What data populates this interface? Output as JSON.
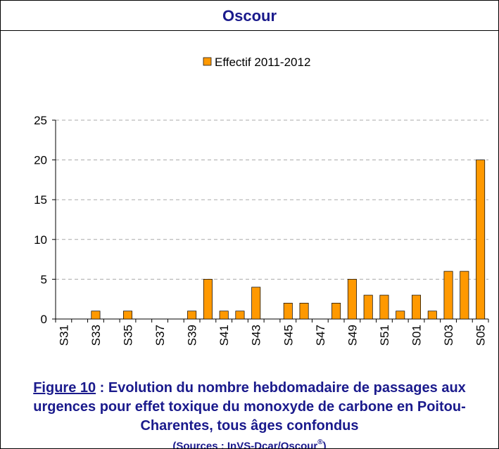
{
  "header": {
    "title": "Oscour"
  },
  "chart_data": {
    "type": "bar",
    "categories": [
      "S31",
      null,
      "S33",
      null,
      "S35",
      null,
      "S37",
      null,
      "S39",
      null,
      "S41",
      null,
      "S43",
      null,
      "S45",
      null,
      "S47",
      null,
      "S49",
      null,
      "S51",
      null,
      "S01",
      null,
      "S03",
      null,
      "S05"
    ],
    "series": [
      {
        "name": "Effectif 2011-2012",
        "color": "#ff9900",
        "values": [
          0,
          0,
          1,
          0,
          1,
          0,
          0,
          0,
          1,
          5,
          1,
          1,
          4,
          0,
          2,
          2,
          0,
          2,
          5,
          3,
          3,
          1,
          3,
          1,
          6,
          6,
          20
        ]
      }
    ],
    "ylim": [
      0,
      25
    ],
    "yticks": [
      0,
      5,
      10,
      15,
      20,
      25
    ],
    "grid": true,
    "legend": "top"
  },
  "caption": {
    "figure_label": "Figure 10",
    "text": " : Evolution du nombre hebdomadaire de passages aux urgences pour effet toxique du monoxyde de carbone en Poitou-Charentes, tous âges confondus",
    "sources": "(Sources : InVS-Dcar/Oscour",
    "sources_mark": "®",
    "sources_end": ")"
  }
}
